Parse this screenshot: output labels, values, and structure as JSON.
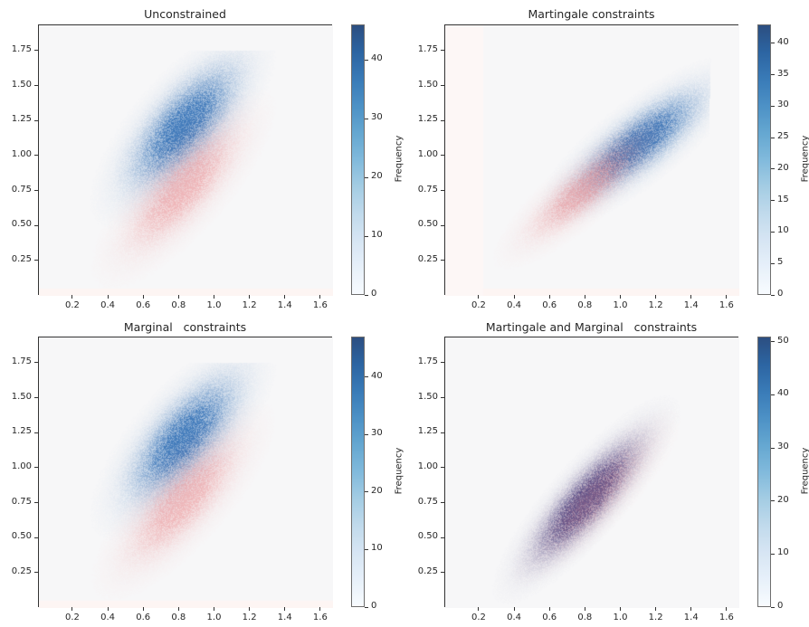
{
  "chart_data": [
    {
      "type": "heatmap",
      "title": "Unconstrained",
      "xlabel": "",
      "ylabel": "",
      "xlim": [
        0.006,
        1.667
      ],
      "ylim": [
        0.004,
        1.937
      ],
      "xticks": [
        0.2,
        0.4,
        0.6,
        0.8,
        1.0,
        1.2,
        1.4,
        1.6
      ],
      "xtick_labels": [
        "0.2",
        "0.4",
        "0.6",
        "0.8",
        "1.0",
        "1.2",
        "1.4",
        "1.6"
      ],
      "yticks": [
        0.25,
        0.5,
        0.75,
        1.0,
        1.25,
        1.5,
        1.75
      ],
      "ytick_labels": [
        "0.25",
        "0.50",
        "0.75",
        "1.00",
        "1.25",
        "1.50",
        "1.75"
      ],
      "grid": false,
      "colorbar": {
        "label": "Frequency",
        "range": [
          0,
          46
        ],
        "ticks": [
          0,
          10,
          20,
          30,
          40
        ],
        "tick_labels": [
          "0",
          "10",
          "20",
          "30",
          "40"
        ],
        "colormap": "Blues"
      },
      "series": [
        {
          "name": "blue-density",
          "color": "#2f6eb5",
          "center": [
            0.82,
            1.22
          ],
          "spread": [
            0.17,
            0.24
          ],
          "correlation": 0.72,
          "peak": 40,
          "clip_ymax": 1.76
        },
        {
          "name": "red-density",
          "color": "#e8787c",
          "center": [
            0.82,
            0.78
          ],
          "spread": [
            0.18,
            0.25
          ],
          "correlation": 0.78,
          "peak": 22
        }
      ]
    },
    {
      "type": "heatmap",
      "title": "Martingale constraints",
      "xlabel": "",
      "ylabel": "",
      "xlim": [
        0.006,
        1.667
      ],
      "ylim": [
        0.004,
        1.937
      ],
      "xticks": [
        0.2,
        0.4,
        0.6,
        0.8,
        1.0,
        1.2,
        1.4,
        1.6
      ],
      "xtick_labels": [
        "0.2",
        "0.4",
        "0.6",
        "0.8",
        "1.0",
        "1.2",
        "1.4",
        "1.6"
      ],
      "yticks": [
        0.25,
        0.5,
        0.75,
        1.0,
        1.25,
        1.5,
        1.75
      ],
      "ytick_labels": [
        "0.25",
        "0.50",
        "0.75",
        "1.00",
        "1.25",
        "1.50",
        "1.75"
      ],
      "grid": false,
      "colorbar": {
        "label": "Frequency",
        "range": [
          0,
          43
        ],
        "ticks": [
          0,
          5,
          10,
          15,
          20,
          25,
          30,
          35,
          40
        ],
        "tick_labels": [
          "0",
          "5",
          "10",
          "15",
          "20",
          "25",
          "30",
          "35",
          "40"
        ],
        "colormap": "Blues"
      },
      "series": [
        {
          "name": "blue-density",
          "color": "#2f6eb5",
          "center": [
            1.1,
            1.1
          ],
          "spread": [
            0.19,
            0.2
          ],
          "correlation": 0.8,
          "peak": 38,
          "clip_xmax": 1.49
        },
        {
          "name": "red-density",
          "color": "#e8787c",
          "center": [
            0.8,
            0.78
          ],
          "spread": [
            0.18,
            0.2
          ],
          "correlation": 0.85,
          "peak": 22
        }
      ]
    },
    {
      "type": "heatmap",
      "title": "Marginal   constraints",
      "xlabel": "",
      "ylabel": "",
      "xlim": [
        0.006,
        1.667
      ],
      "ylim": [
        0.004,
        1.937
      ],
      "xticks": [
        0.2,
        0.4,
        0.6,
        0.8,
        1.0,
        1.2,
        1.4,
        1.6
      ],
      "xtick_labels": [
        "0.2",
        "0.4",
        "0.6",
        "0.8",
        "1.0",
        "1.2",
        "1.4",
        "1.6"
      ],
      "yticks": [
        0.25,
        0.5,
        0.75,
        1.0,
        1.25,
        1.5,
        1.75
      ],
      "ytick_labels": [
        "0.25",
        "0.50",
        "0.75",
        "1.00",
        "1.25",
        "1.50",
        "1.75"
      ],
      "grid": false,
      "colorbar": {
        "label": "Frequency",
        "range": [
          0,
          47
        ],
        "ticks": [
          0,
          10,
          20,
          30,
          40
        ],
        "tick_labels": [
          "0",
          "10",
          "20",
          "30",
          "40"
        ],
        "colormap": "Blues"
      },
      "series": [
        {
          "name": "blue-density",
          "color": "#2f6eb5",
          "center": [
            0.82,
            1.22
          ],
          "spread": [
            0.17,
            0.24
          ],
          "correlation": 0.72,
          "peak": 40,
          "clip_ymax": 1.76
        },
        {
          "name": "red-density",
          "color": "#e8787c",
          "center": [
            0.82,
            0.78
          ],
          "spread": [
            0.18,
            0.25
          ],
          "correlation": 0.78,
          "peak": 22
        }
      ]
    },
    {
      "type": "heatmap",
      "title": "Martingale and Marginal   constraints",
      "xlabel": "",
      "ylabel": "",
      "xlim": [
        0.006,
        1.667
      ],
      "ylim": [
        0.004,
        1.937
      ],
      "xticks": [
        0.2,
        0.4,
        0.6,
        0.8,
        1.0,
        1.2,
        1.4,
        1.6
      ],
      "xtick_labels": [
        "0.2",
        "0.4",
        "0.6",
        "0.8",
        "1.0",
        "1.2",
        "1.4",
        "1.6"
      ],
      "yticks": [
        0.25,
        0.5,
        0.75,
        1.0,
        1.25,
        1.5,
        1.75
      ],
      "ytick_labels": [
        "0.25",
        "0.50",
        "0.75",
        "1.00",
        "1.25",
        "1.50",
        "1.75"
      ],
      "grid": false,
      "colorbar": {
        "label": "Frequency",
        "range": [
          0,
          51
        ],
        "ticks": [
          0,
          10,
          20,
          30,
          40,
          50
        ],
        "tick_labels": [
          "0",
          "10",
          "20",
          "30",
          "40",
          "50"
        ],
        "colormap": "Blues"
      },
      "series": [
        {
          "name": "blue-density",
          "color": "#3d3f82",
          "center": [
            0.8,
            0.78
          ],
          "spread": [
            0.17,
            0.24
          ],
          "correlation": 0.85,
          "peak": 48
        },
        {
          "name": "red-density",
          "color": "#e8787c",
          "center": [
            0.85,
            0.8
          ],
          "spread": [
            0.18,
            0.24
          ],
          "correlation": 0.85,
          "peak": 14
        }
      ]
    }
  ]
}
